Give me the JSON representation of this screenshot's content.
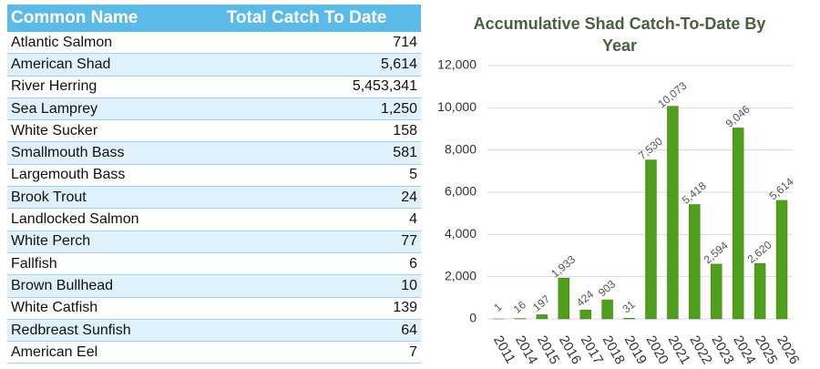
{
  "table": {
    "header": [
      "Common Name",
      "Total Catch To Date"
    ],
    "rows": [
      [
        "Atlantic Salmon",
        "714"
      ],
      [
        "American Shad",
        "5,614"
      ],
      [
        "River Herring",
        "5,453,341"
      ],
      [
        "Sea Lamprey",
        "1,250"
      ],
      [
        "White Sucker",
        "158"
      ],
      [
        "Smallmouth Bass",
        "581"
      ],
      [
        "Largemouth Bass",
        "5"
      ],
      [
        "Brook Trout",
        "24"
      ],
      [
        "Landlocked Salmon",
        "4"
      ],
      [
        "White Perch",
        "77"
      ],
      [
        "Fallfish",
        "6"
      ],
      [
        "Brown Bullhead",
        "10"
      ],
      [
        "White Catfish",
        "139"
      ],
      [
        "Redbreast Sunfish",
        "64"
      ],
      [
        "American Eel",
        "7"
      ]
    ]
  },
  "chart_data": {
    "type": "bar",
    "title": "Accumulative Shad Catch-To-Date By Year",
    "categories": [
      "2011",
      "2014",
      "2015",
      "2016",
      "2017",
      "2018",
      "2019",
      "2020",
      "2021",
      "2022",
      "2023",
      "2024",
      "2025",
      "2026"
    ],
    "values": [
      1,
      16,
      197,
      1933,
      424,
      903,
      31,
      7530,
      10073,
      5418,
      2594,
      9046,
      2620,
      5614
    ],
    "value_labels": [
      "1",
      "16",
      "197",
      "1,933",
      "424",
      "903",
      "31",
      "7,530",
      "10,073",
      "5,418",
      "2,594",
      "9,046",
      "2,620",
      "5,614"
    ],
    "color": "#4f9e1c",
    "ylim": [
      0,
      12000
    ],
    "yticks": [
      0,
      {
        "value": 2000,
        "label": "2,000"
      },
      {
        "value": 4000,
        "label": "4,000"
      },
      {
        "value": 6000,
        "label": "6,000"
      },
      {
        "value": 8000,
        "label": "8,000"
      },
      {
        "value": 10000,
        "label": "10,000"
      },
      {
        "value": 12000,
        "label": "12,000"
      }
    ],
    "grid": true
  }
}
